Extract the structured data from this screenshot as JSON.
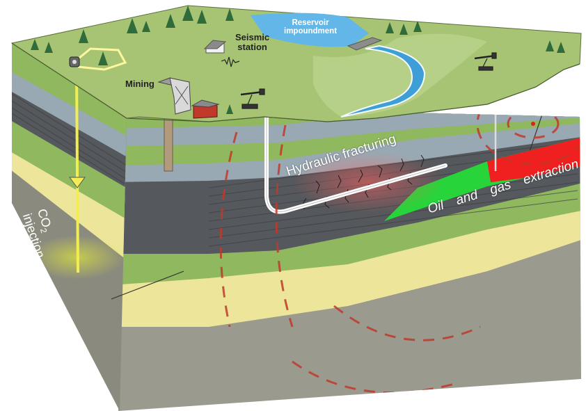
{
  "labels": {
    "reservoir_line1": "Reservoir",
    "reservoir_line2": "impoundment",
    "seismic_line1": "Seismic",
    "seismic_line2": "station",
    "mining": "Mining",
    "hydraulic_fracturing": "Hydraulic fracturing",
    "oil_and_gas_extraction": "Oil and gas extraction",
    "co2_prefix": "CO",
    "co2_subscript": "2",
    "co2_suffix": "injection"
  },
  "icons": [
    "tree-icon",
    "house-icon",
    "seismograph-icon",
    "pumpjack-icon",
    "mine-headframe-icon",
    "wellhead-icon",
    "injection-arrow-icon"
  ],
  "colors": {
    "surface_green": "#a7c474",
    "stratum_green": "#8fb85f",
    "shale_dark": "#55585c",
    "blue_gray": "#98a9b3",
    "sand_yellow": "#ece59a",
    "basement_gray": "#9a9a8e",
    "water_blue": "#3e9ed8",
    "oil_gas_green": "#27d43a",
    "oil_gas_red": "#f12020",
    "seismic_wave_red": "#c0392b"
  }
}
